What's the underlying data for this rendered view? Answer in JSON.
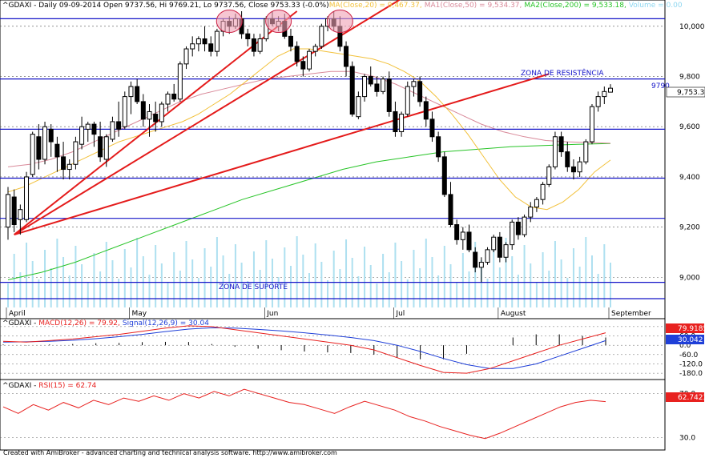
{
  "header": {
    "symbol_line": "^GDAXI - Daily 09-09-2014 Open 9737.56, Hi 9769.21, Lo 9737.56, Close 9753.33 (-0.0%)",
    "ma20": "MA(Close,20) = 9,467.37,",
    "ma50": "MA1(Close,50) = 9,534.37,",
    "ma200": "MA2(Close,200) = 9,533.18,",
    "volume": "Volume = 0.00"
  },
  "labels": {
    "resistance": "ZONA DE RESISTÊNCIA",
    "support": "ZONA DE SUPORTE",
    "level_9790": "9790",
    "last_close": "9,753.33"
  },
  "macd_header": {
    "prefix": "^GDAXI - ",
    "macd": "MACD(12,26) = 79.92,",
    "signal": "Signal(12,26,9) = 30.04"
  },
  "macd_labels": {
    "macd_value": "79.9185",
    "signal_value": "30.042"
  },
  "rsi_header": {
    "prefix": "^GDAXI - ",
    "rsi": "RSI(15) = 62.74"
  },
  "rsi_labels": {
    "rsi_value": "62.7423"
  },
  "footer": "Created with AmiBroker - advanced charting and technical analysis software. http://www.amibroker.com",
  "colors": {
    "ma20": "#f2c13b",
    "ma50": "#d98a9a",
    "ma200": "#27c427",
    "macd": "#e8211f",
    "signal": "#1f3fd8",
    "rsi": "#e8211f",
    "trend": "#e41b1b",
    "level": "#1414c8",
    "volume": "#aee0f0"
  },
  "chart_data": [
    {
      "type": "candlestick",
      "title": "^GDAXI - Daily",
      "x_labels": [
        "April",
        "May",
        "Jun",
        "Jul",
        "August",
        "September"
      ],
      "yticks": [
        9000,
        9200,
        9400,
        9600,
        9800,
        10000
      ],
      "ylim": [
        8880,
        10060
      ],
      "horizontal_levels": [
        10030,
        9790,
        9590,
        9395,
        9235,
        8980,
        8915
      ],
      "ohlc": [
        [
          9200,
          9360,
          9150,
          9330
        ],
        [
          9320,
          9350,
          9180,
          9210
        ],
        [
          9230,
          9290,
          9170,
          9270
        ],
        [
          9230,
          9420,
          9220,
          9400
        ],
        [
          9410,
          9580,
          9400,
          9570
        ],
        [
          9560,
          9610,
          9430,
          9470
        ],
        [
          9470,
          9620,
          9450,
          9600
        ],
        [
          9590,
          9610,
          9480,
          9540
        ],
        [
          9530,
          9560,
          9420,
          9480
        ],
        [
          9480,
          9540,
          9390,
          9430
        ],
        [
          9430,
          9470,
          9390,
          9450
        ],
        [
          9450,
          9560,
          9430,
          9540
        ],
        [
          9530,
          9640,
          9510,
          9600
        ],
        [
          9590,
          9620,
          9540,
          9610
        ],
        [
          9610,
          9620,
          9520,
          9570
        ],
        [
          9560,
          9620,
          9460,
          9480
        ],
        [
          9470,
          9570,
          9440,
          9560
        ],
        [
          9550,
          9640,
          9540,
          9620
        ],
        [
          9620,
          9700,
          9560,
          9590
        ],
        [
          9600,
          9740,
          9590,
          9720
        ],
        [
          9720,
          9780,
          9650,
          9760
        ],
        [
          9760,
          9790,
          9690,
          9700
        ],
        [
          9700,
          9730,
          9600,
          9630
        ],
        [
          9630,
          9690,
          9560,
          9660
        ],
        [
          9650,
          9700,
          9580,
          9620
        ],
        [
          9620,
          9700,
          9600,
          9690
        ],
        [
          9690,
          9740,
          9660,
          9730
        ],
        [
          9730,
          9770,
          9700,
          9710
        ],
        [
          9710,
          9860,
          9700,
          9850
        ],
        [
          9850,
          9920,
          9830,
          9910
        ],
        [
          9910,
          9960,
          9880,
          9930
        ],
        [
          9930,
          9960,
          9900,
          9950
        ],
        [
          9950,
          10000,
          9900,
          9930
        ],
        [
          9930,
          9960,
          9880,
          9900
        ],
        [
          9900,
          9990,
          9880,
          9980
        ],
        [
          9980,
          10030,
          9960,
          10020
        ],
        [
          10020,
          10040,
          9970,
          10000
        ],
        [
          10000,
          10050,
          9990,
          10030
        ],
        [
          10030,
          10060,
          9950,
          9970
        ],
        [
          9970,
          9990,
          9920,
          9950
        ],
        [
          9950,
          9970,
          9880,
          9900
        ],
        [
          9900,
          9970,
          9890,
          9950
        ],
        [
          9950,
          10040,
          9940,
          10030
        ],
        [
          10030,
          10060,
          10000,
          10010
        ],
        [
          10000,
          10040,
          9980,
          10020
        ],
        [
          10020,
          10050,
          9950,
          9960
        ],
        [
          9960,
          9990,
          9900,
          9920
        ],
        [
          9920,
          9940,
          9840,
          9860
        ],
        [
          9860,
          9880,
          9800,
          9830
        ],
        [
          9830,
          9910,
          9820,
          9900
        ],
        [
          9900,
          9930,
          9880,
          9920
        ],
        [
          9920,
          10010,
          9910,
          10000
        ],
        [
          10000,
          10040,
          9980,
          10030
        ],
        [
          10030,
          10060,
          9980,
          10000
        ],
        [
          10000,
          10040,
          9900,
          9920
        ],
        [
          9920,
          9940,
          9800,
          9840
        ],
        [
          9840,
          9860,
          9640,
          9650
        ],
        [
          9640,
          9740,
          9630,
          9720
        ],
        [
          9720,
          9810,
          9700,
          9800
        ],
        [
          9800,
          9840,
          9760,
          9770
        ],
        [
          9770,
          9800,
          9720,
          9740
        ],
        [
          9740,
          9800,
          9730,
          9790
        ],
        [
          9790,
          9820,
          9640,
          9660
        ],
        [
          9660,
          9700,
          9560,
          9580
        ],
        [
          9580,
          9660,
          9560,
          9650
        ],
        [
          9650,
          9780,
          9640,
          9760
        ],
        [
          9760,
          9790,
          9720,
          9780
        ],
        [
          9780,
          9800,
          9680,
          9700
        ],
        [
          9700,
          9720,
          9600,
          9630
        ],
        [
          9630,
          9660,
          9540,
          9560
        ],
        [
          9560,
          9580,
          9460,
          9480
        ],
        [
          9480,
          9500,
          9320,
          9330
        ],
        [
          9330,
          9380,
          9200,
          9210
        ],
        [
          9210,
          9230,
          9130,
          9150
        ],
        [
          9150,
          9200,
          9110,
          9180
        ],
        [
          9180,
          9210,
          9100,
          9110
        ],
        [
          9100,
          9120,
          9020,
          9040
        ],
        [
          9040,
          9080,
          8980,
          9060
        ],
        [
          9060,
          9120,
          9050,
          9110
        ],
        [
          9110,
          9170,
          9100,
          9160
        ],
        [
          9160,
          9180,
          9060,
          9080
        ],
        [
          9080,
          9140,
          9060,
          9130
        ],
        [
          9130,
          9230,
          9110,
          9220
        ],
        [
          9220,
          9240,
          9150,
          9170
        ],
        [
          9170,
          9250,
          9160,
          9240
        ],
        [
          9240,
          9300,
          9220,
          9280
        ],
        [
          9280,
          9320,
          9260,
          9310
        ],
        [
          9310,
          9380,
          9290,
          9370
        ],
        [
          9370,
          9450,
          9360,
          9440
        ],
        [
          9440,
          9580,
          9430,
          9560
        ],
        [
          9560,
          9580,
          9480,
          9500
        ],
        [
          9500,
          9540,
          9420,
          9440
        ],
        [
          9440,
          9470,
          9390,
          9420
        ],
        [
          9420,
          9480,
          9400,
          9460
        ],
        [
          9460,
          9550,
          9450,
          9540
        ],
        [
          9540,
          9690,
          9530,
          9680
        ],
        [
          9680,
          9740,
          9660,
          9720
        ],
        [
          9720,
          9760,
          9690,
          9740
        ],
        [
          9737.56,
          9769.21,
          9737.56,
          9753.33
        ]
      ],
      "moving_averages": {
        "MA20": [
          9340,
          9360,
          9390,
          9420,
          9450,
          9480,
          9510,
          9540,
          9560,
          9580,
          9600,
          9620,
          9650,
          9690,
          9730,
          9780,
          9830,
          9880,
          9910,
          9910,
          9900,
          9890,
          9880,
          9870,
          9850,
          9820,
          9780,
          9720,
          9650,
          9570,
          9480,
          9390,
          9320,
          9280,
          9270,
          9300,
          9350,
          9420,
          9467
        ],
        "MA50": [
          9440,
          9450,
          9470,
          9500,
          9540,
          9580,
          9620,
          9660,
          9700,
          9730,
          9750,
          9770,
          9790,
          9800,
          9810,
          9820,
          9820,
          9800,
          9770,
          9730,
          9690,
          9650,
          9610,
          9580,
          9560,
          9545,
          9540,
          9537,
          9534
        ],
        "MA200": [
          8990,
          9020,
          9060,
          9110,
          9160,
          9210,
          9260,
          9310,
          9350,
          9390,
          9430,
          9460,
          9480,
          9500,
          9510,
          9520,
          9525,
          9530,
          9533
        ]
      }
    },
    {
      "type": "line",
      "title": "MACD(12,26)",
      "yticks": [
        120.0,
        60.0,
        0.0,
        -60.0,
        -120.0,
        -180.0
      ],
      "series": [
        {
          "name": "MACD(12,26)",
          "values": [
            25,
            20,
            30,
            40,
            55,
            70,
            90,
            110,
            125,
            120,
            100,
            80,
            60,
            40,
            20,
            0,
            -30,
            -80,
            -130,
            -175,
            -180,
            -150,
            -100,
            -50,
            0,
            40,
            80
          ]
        },
        {
          "name": "Signal(12,26,9)",
          "values": [
            20,
            22,
            25,
            32,
            42,
            55,
            70,
            88,
            104,
            112,
            110,
            102,
            92,
            80,
            66,
            50,
            30,
            0,
            -40,
            -85,
            -125,
            -150,
            -150,
            -120,
            -70,
            -20,
            30
          ]
        }
      ]
    },
    {
      "type": "line",
      "title": "RSI(15)",
      "yticks": [
        70.0,
        30.0
      ],
      "series": [
        {
          "name": "RSI(15)",
          "values": [
            58,
            52,
            60,
            55,
            62,
            57,
            64,
            60,
            66,
            63,
            68,
            64,
            70,
            66,
            72,
            68,
            74,
            70,
            66,
            62,
            60,
            56,
            52,
            58,
            63,
            59,
            55,
            49,
            45,
            40,
            36,
            32,
            29,
            34,
            40,
            46,
            52,
            58,
            62,
            64,
            62.74
          ]
        }
      ]
    }
  ]
}
